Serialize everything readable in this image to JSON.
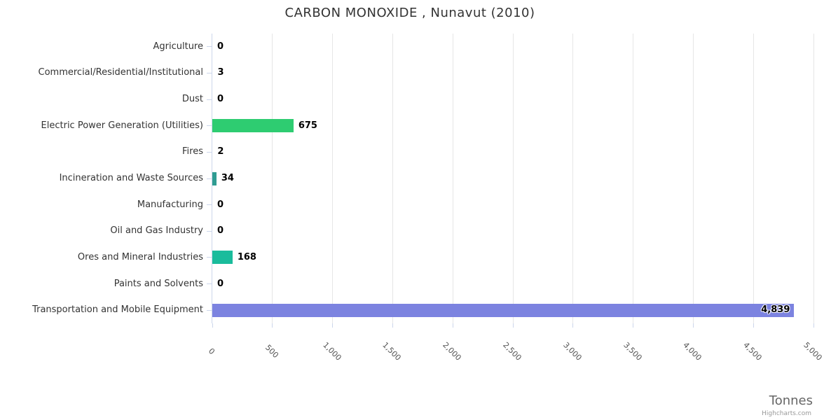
{
  "title": "CARBON MONOXIDE , Nunavut (2010)",
  "axis_title": "Tonnes",
  "credit": "Highcharts.com",
  "colors": {
    "title": "#333333",
    "category_label": "#333333",
    "data_label": "#000000",
    "tick_label": "#555555",
    "gridline": "#e6e6e6",
    "axis_line": "#ccd6eb",
    "axis_title": "#666666",
    "credit": "#999999",
    "bar_green": "#2ecc71",
    "bar_dark_teal": "#2f9c92",
    "bar_turquoise": "#1abc9c",
    "bar_periwinkle": "#7c83e0"
  },
  "chart_data": {
    "type": "bar",
    "orientation": "horizontal",
    "title": "CARBON MONOXIDE , Nunavut (2010)",
    "categories": [
      "Agriculture",
      "Commercial/Residential/Institutional",
      "Dust",
      "Electric Power Generation (Utilities)",
      "Fires",
      "Incineration and Waste Sources",
      "Manufacturing",
      "Oil and Gas Industry",
      "Ores and Mineral Industries",
      "Paints and Solvents",
      "Transportation and Mobile Equipment"
    ],
    "values": [
      0,
      3,
      0,
      675,
      2,
      34,
      0,
      0,
      168,
      0,
      4839
    ],
    "value_labels": [
      "0",
      "3",
      "0",
      "675",
      "2",
      "34",
      "0",
      "0",
      "168",
      "0",
      "4,839"
    ],
    "bar_colors": [
      null,
      null,
      null,
      "#2ecc71",
      null,
      "#2f9c92",
      null,
      null,
      "#1abc9c",
      null,
      "#7c83e0"
    ],
    "xlabel": "Tonnes",
    "xlim": [
      0,
      5000
    ],
    "x_tick_interval": 500,
    "x_tick_labels": [
      "0",
      "500",
      "1,000",
      "1,500",
      "2,000",
      "2,500",
      "3,000",
      "3,500",
      "4,000",
      "4,500",
      "5,000"
    ],
    "grid": true,
    "legend": false,
    "credit": "Highcharts.com"
  }
}
